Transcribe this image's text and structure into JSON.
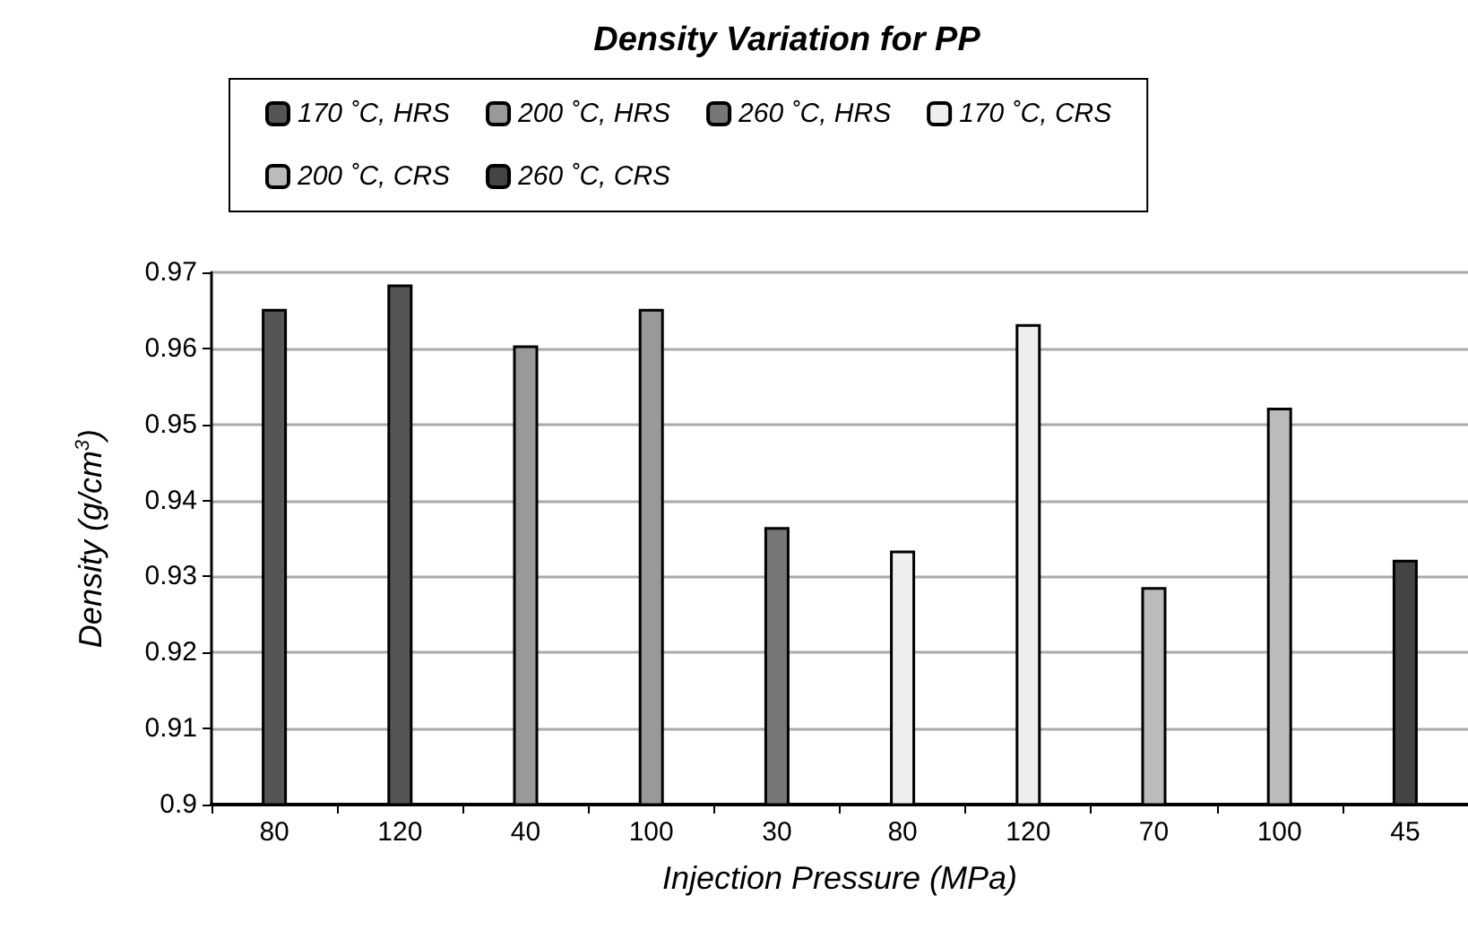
{
  "chart_data": {
    "type": "bar",
    "title": "Density Variation for PP",
    "xlabel": "Injection Pressure (MPa)",
    "ylabel": "Density (g/cm$^{3}$)",
    "categories": [
      "80",
      "120",
      "40",
      "100",
      "30",
      "80",
      "120",
      "70",
      "100",
      "45"
    ],
    "series": [
      {
        "name": "170 ˚C, HRS",
        "color": "#555555",
        "values": [
          0.9652,
          0.9684,
          null,
          null,
          null,
          null,
          null,
          null,
          null,
          null
        ]
      },
      {
        "name": "200 ˚C, HRS",
        "color": "#999999",
        "values": [
          null,
          null,
          0.9604,
          0.9652,
          null,
          null,
          null,
          null,
          null,
          null
        ]
      },
      {
        "name": "260 ˚C, HRS",
        "color": "#777777",
        "values": [
          null,
          null,
          null,
          null,
          0.9365,
          null,
          null,
          null,
          null,
          null
        ]
      },
      {
        "name": "170 ˚C, CRS",
        "color": "#eeeeee",
        "values": [
          null,
          null,
          null,
          null,
          null,
          0.9334,
          0.9632,
          null,
          null,
          null
        ]
      },
      {
        "name": "200 ˚C, CRS",
        "color": "#bbbbbb",
        "values": [
          null,
          null,
          null,
          null,
          null,
          null,
          null,
          0.9286,
          0.9522,
          null
        ]
      },
      {
        "name": "260 ˚C, CRS",
        "color": "#444444",
        "values": [
          null,
          null,
          null,
          null,
          null,
          null,
          null,
          null,
          null,
          0.9322
        ]
      }
    ],
    "ylim": [
      0.9,
      0.97
    ],
    "yticks": [
      0.9,
      0.91,
      0.92,
      0.93,
      0.94,
      0.95,
      0.96,
      0.97
    ],
    "grid": "y",
    "legend": "top"
  }
}
